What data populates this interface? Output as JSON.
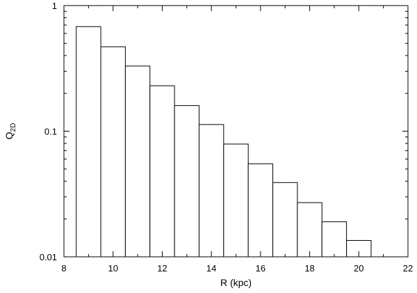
{
  "chart_data": {
    "type": "bar",
    "title": "",
    "xlabel": "R (kpc)",
    "ylabel": {
      "base": "Q",
      "subscript": "2D"
    },
    "yscale": "log",
    "xlim": [
      8,
      22
    ],
    "ylim": [
      0.01,
      1
    ],
    "grid": false,
    "x_ticks": [
      8,
      10,
      12,
      14,
      16,
      18,
      20,
      22
    ],
    "x_tick_labels": [
      "8",
      "10",
      "12",
      "14",
      "16",
      "18",
      "20",
      "22"
    ],
    "y_ticks": [
      0.01,
      0.1,
      1
    ],
    "y_tick_labels": [
      "0.01",
      "0.1",
      "1"
    ],
    "bin_width": 1,
    "bins": [
      {
        "x": 9,
        "value": 0.68
      },
      {
        "x": 10,
        "value": 0.47
      },
      {
        "x": 11,
        "value": 0.33
      },
      {
        "x": 12,
        "value": 0.23
      },
      {
        "x": 13,
        "value": 0.16
      },
      {
        "x": 14,
        "value": 0.113
      },
      {
        "x": 15,
        "value": 0.079
      },
      {
        "x": 16,
        "value": 0.055
      },
      {
        "x": 17,
        "value": 0.039
      },
      {
        "x": 18,
        "value": 0.027
      },
      {
        "x": 19,
        "value": 0.019
      },
      {
        "x": 20,
        "value": 0.0135
      }
    ]
  }
}
